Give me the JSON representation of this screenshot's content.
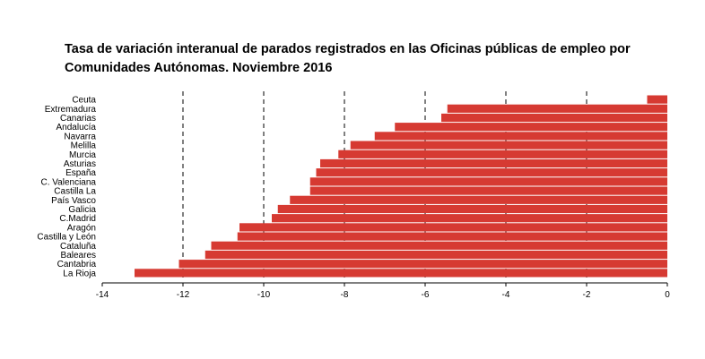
{
  "chart_data": {
    "type": "bar",
    "orientation": "horizontal",
    "title": "Tasa de variación interanual de parados registrados en las Oficinas públicas de empleo por Comunidades Autónomas.  Noviembre 2016",
    "xlabel": "",
    "ylabel": "",
    "xlim": [
      -14,
      0
    ],
    "x_ticks": [
      -14,
      -12,
      -10,
      -8,
      -6,
      -4,
      -2,
      0
    ],
    "grid": "vertical dashed lines at -12, -10, -8, -6, -4, -2",
    "legend": "none",
    "bar_color": "#D63A32",
    "categories": [
      "Ceuta",
      "Extremadura",
      "Canarias",
      "Andalucía",
      "Navarra",
      "Melilla",
      "Murcia",
      "Asturias",
      "España",
      "C. Valenciana",
      "Castilla La",
      "País Vasco",
      "Galicia",
      "C.Madrid",
      "Aragón",
      "Castilla y León",
      "Cataluña",
      "Baleares",
      "Cantabria",
      "La Rioja"
    ],
    "values": [
      -0.5,
      -5.45,
      -5.6,
      -6.75,
      -7.25,
      -7.85,
      -8.15,
      -8.6,
      -8.7,
      -8.85,
      -8.85,
      -9.35,
      -9.65,
      -9.8,
      -10.6,
      -10.65,
      -11.3,
      -11.45,
      -12.1,
      -13.2
    ]
  }
}
